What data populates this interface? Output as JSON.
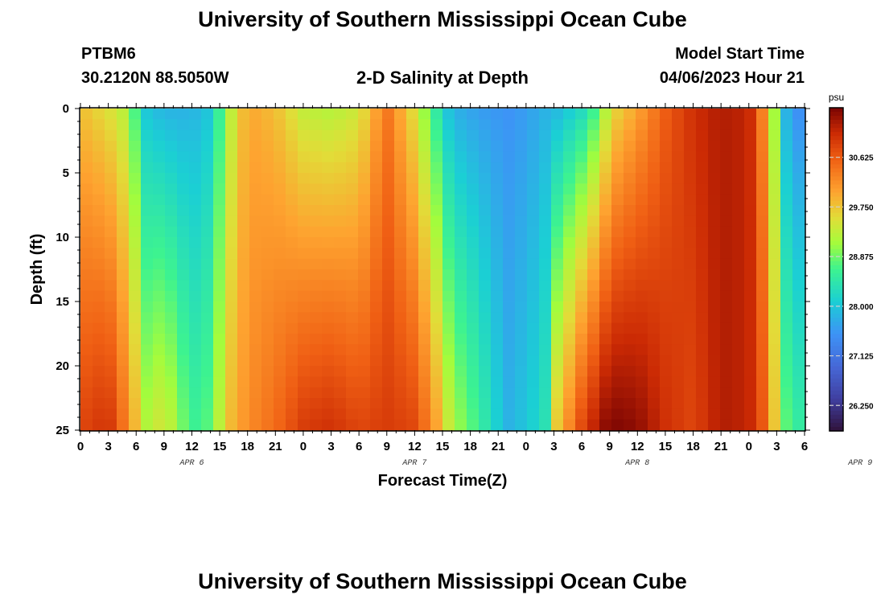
{
  "page": {
    "title_top": "University of Southern Mississippi Ocean Cube",
    "title_bottom": "University of Southern Mississippi Ocean Cube",
    "station": "PTBM6",
    "coords": "30.2120N  88.5050W",
    "subtitle": "2-D Salinity at Depth",
    "model_start_label": "Model Start Time",
    "model_start_time": "04/06/2023 Hour 21"
  },
  "chart_data": {
    "type": "heatmap",
    "title": "2-D Salinity at Depth",
    "xlabel": "Forecast Time(Z)",
    "ylabel": "Depth (ft)",
    "x_ticks": [
      "0",
      "3",
      "6",
      "9",
      "12",
      "15",
      "18",
      "21",
      "0",
      "3",
      "6",
      "9",
      "12",
      "15",
      "18",
      "21",
      "0",
      "3",
      "6",
      "9",
      "12",
      "15",
      "18",
      "21",
      "0",
      "3",
      "6"
    ],
    "x_range_hours": [
      0,
      78
    ],
    "date_labels": [
      {
        "label": "APR 6",
        "hour": 12
      },
      {
        "label": "APR 7",
        "hour": 36
      },
      {
        "label": "APR 8",
        "hour": 60
      },
      {
        "label": "APR 9",
        "hour": 84
      }
    ],
    "y_ticks": [
      "0",
      "5",
      "10",
      "15",
      "20",
      "25"
    ],
    "ylim": [
      0,
      25
    ],
    "y_inverted": true,
    "colorbar": {
      "unit": "psu",
      "ticks": [
        "30.625",
        "29.750",
        "28.875",
        "28.000",
        "27.125",
        "26.250"
      ],
      "range": [
        25.8,
        31.5
      ]
    },
    "salinity_profiles": [
      {
        "hour": 0,
        "surface": 29.8,
        "bottom": 30.8
      },
      {
        "hour": 3,
        "surface": 29.5,
        "bottom": 31.0
      },
      {
        "hour": 5,
        "surface": 29.2,
        "bottom": 30.3
      },
      {
        "hour": 6,
        "surface": 28.6,
        "bottom": 29.8
      },
      {
        "hour": 7,
        "surface": 28.0,
        "bottom": 29.2
      },
      {
        "hour": 9,
        "surface": 27.8,
        "bottom": 29.5
      },
      {
        "hour": 12,
        "surface": 27.8,
        "bottom": 28.6
      },
      {
        "hour": 14,
        "surface": 28.0,
        "bottom": 28.8
      },
      {
        "hour": 16,
        "surface": 29.2,
        "bottom": 29.8
      },
      {
        "hour": 18,
        "surface": 30.0,
        "bottom": 30.2
      },
      {
        "hour": 21,
        "surface": 29.8,
        "bottom": 30.5
      },
      {
        "hour": 24,
        "surface": 29.3,
        "bottom": 30.9
      },
      {
        "hour": 27,
        "surface": 29.2,
        "bottom": 31.0
      },
      {
        "hour": 30,
        "surface": 29.4,
        "bottom": 30.8
      },
      {
        "hour": 33,
        "surface": 30.4,
        "bottom": 30.9
      },
      {
        "hour": 36,
        "surface": 29.5,
        "bottom": 30.8
      },
      {
        "hour": 38,
        "surface": 28.6,
        "bottom": 30.2
      },
      {
        "hour": 40,
        "surface": 27.8,
        "bottom": 29.2
      },
      {
        "hour": 43,
        "surface": 27.6,
        "bottom": 28.6
      },
      {
        "hour": 46,
        "surface": 27.5,
        "bottom": 27.8
      },
      {
        "hour": 48,
        "surface": 27.6,
        "bottom": 28.0
      },
      {
        "hour": 50,
        "surface": 27.8,
        "bottom": 28.3
      },
      {
        "hour": 51,
        "surface": 27.8,
        "bottom": 29.6
      },
      {
        "hour": 54,
        "surface": 28.2,
        "bottom": 30.8
      },
      {
        "hour": 56,
        "surface": 28.8,
        "bottom": 31.3
      },
      {
        "hour": 57,
        "surface": 29.5,
        "bottom": 31.5
      },
      {
        "hour": 60,
        "surface": 30.0,
        "bottom": 31.4
      },
      {
        "hour": 63,
        "surface": 30.6,
        "bottom": 31.0
      },
      {
        "hour": 66,
        "surface": 31.0,
        "bottom": 30.8
      },
      {
        "hour": 69,
        "surface": 31.2,
        "bottom": 31.2
      },
      {
        "hour": 72,
        "surface": 31.1,
        "bottom": 31.1
      },
      {
        "hour": 74,
        "surface": 30.0,
        "bottom": 30.5
      },
      {
        "hour": 75,
        "surface": 28.8,
        "bottom": 29.5
      },
      {
        "hour": 76,
        "surface": 27.8,
        "bottom": 28.8
      },
      {
        "hour": 78,
        "surface": 27.3,
        "bottom": 28.4
      }
    ]
  }
}
